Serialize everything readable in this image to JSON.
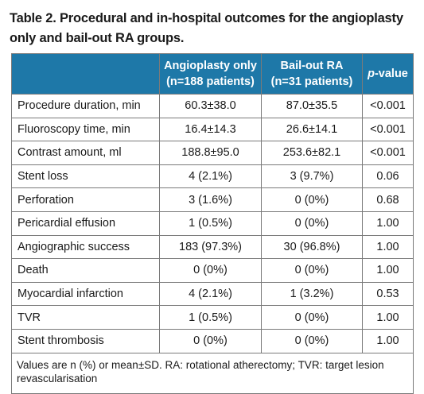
{
  "caption": "Table 2. Procedural and in-hospital outcomes for the angioplasty only and bail-out RA groups.",
  "table": {
    "headers": {
      "col1_line1": "Angioplasty only",
      "col1_line2": "(n=188 patients)",
      "col2_line1": "Bail-out RA",
      "col2_line2": "(n=31 patients)",
      "col3_italic": "p",
      "col3_rest": "-value"
    },
    "rows": [
      {
        "label": "Procedure duration, min",
        "a": "60.3±38.0",
        "b": "87.0±35.5",
        "p": "<0.001"
      },
      {
        "label": "Fluoroscopy time, min",
        "a": "16.4±14.3",
        "b": "26.6±14.1",
        "p": "<0.001"
      },
      {
        "label": "Contrast amount, ml",
        "a": "188.8±95.0",
        "b": "253.6±82.1",
        "p": "<0.001"
      },
      {
        "label": "Stent loss",
        "a": "4 (2.1%)",
        "b": "3 (9.7%)",
        "p": "0.06"
      },
      {
        "label": "Perforation",
        "a": "3 (1.6%)",
        "b": "0 (0%)",
        "p": "0.68"
      },
      {
        "label": "Pericardial effusion",
        "a": "1 (0.5%)",
        "b": "0 (0%)",
        "p": "1.00"
      },
      {
        "label": "Angiographic success",
        "a": "183 (97.3%)",
        "b": "30 (96.8%)",
        "p": "1.00"
      },
      {
        "label": "Death",
        "a": "0 (0%)",
        "b": "0 (0%)",
        "p": "1.00"
      },
      {
        "label": "Myocardial infarction",
        "a": "4 (2.1%)",
        "b": "1 (3.2%)",
        "p": "0.53"
      },
      {
        "label": "TVR",
        "a": "1 (0.5%)",
        "b": "0 (0%)",
        "p": "1.00"
      },
      {
        "label": "Stent thrombosis",
        "a": "0 (0%)",
        "b": "0 (0%)",
        "p": "1.00"
      }
    ],
    "footnote": "Values are n (%) or mean±SD. RA: rotational atherectomy; TVR: target lesion revascularisation"
  },
  "colors": {
    "header_bg": "#1e78a8",
    "header_text": "#ffffff",
    "border": "#7a7a7a"
  }
}
